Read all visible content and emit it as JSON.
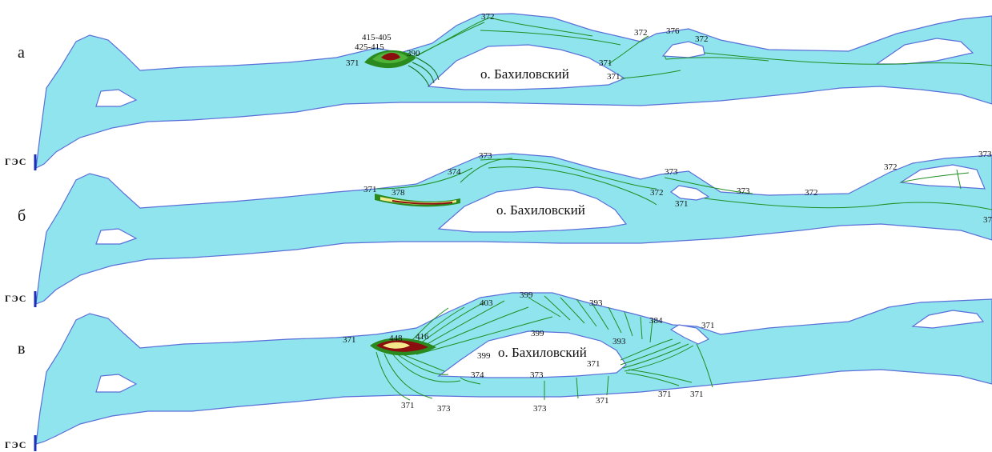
{
  "panels": [
    {
      "letter": "а",
      "dam_label": "ГЭС",
      "island_label": "о. Бахиловский",
      "labels": [
        "372",
        "372",
        "376",
        "372",
        "415-405",
        "425-415",
        "390",
        "371",
        "371",
        "371"
      ]
    },
    {
      "letter": "б",
      "dam_label": "ГЭС",
      "island_label": "о. Бахиловский",
      "labels": [
        "373",
        "374",
        "371",
        "378",
        "373",
        "372",
        "371",
        "373",
        "372",
        "372",
        "373",
        "37"
      ]
    },
    {
      "letter": "в",
      "dam_label": "ГЭС",
      "island_label": "о. Бахиловский",
      "labels": [
        "399",
        "403",
        "393",
        "384",
        "371",
        "371",
        "448",
        "416",
        "399",
        "393",
        "399",
        "371",
        "374",
        "373",
        "371",
        "373",
        "373",
        "371",
        "371",
        "371"
      ]
    }
  ],
  "colors": {
    "water": "#90e4ee",
    "shoreline": "#5a6fd8",
    "isolines": "#1f8f22",
    "high_level_core": "#8b0f0f",
    "high_level_warm": "#f3e98a",
    "dam": "#1c2fb8"
  }
}
